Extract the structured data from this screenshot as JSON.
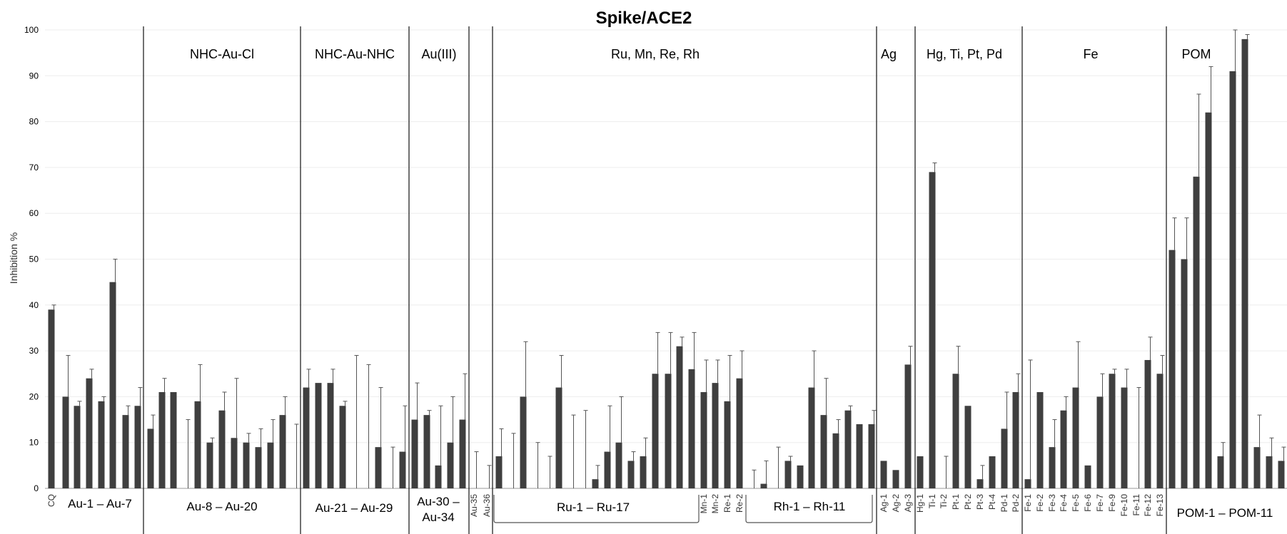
{
  "chart_data": {
    "type": "bar",
    "title": "Spike/ACE2",
    "ylabel": "Inhibition   %",
    "ylim": [
      0,
      100
    ],
    "yticks": [
      0,
      10,
      20,
      30,
      40,
      50,
      60,
      70,
      80,
      90,
      100
    ],
    "grid": true,
    "values": [
      39,
      20,
      18,
      24,
      19,
      45,
      16,
      18,
      13,
      21,
      21,
      0,
      19,
      10,
      17,
      11,
      10,
      9,
      10,
      16,
      0,
      22,
      23,
      23,
      18,
      0,
      0,
      9,
      0,
      8,
      15,
      16,
      5,
      10,
      15,
      0,
      0,
      7,
      0,
      20,
      0,
      0,
      22,
      0,
      0,
      2,
      8,
      10,
      6,
      7,
      25,
      25,
      31,
      26,
      21,
      23,
      19,
      24,
      0,
      1,
      0,
      6,
      5,
      22,
      16,
      12,
      17,
      14,
      14,
      6,
      4,
      27,
      7,
      69,
      0,
      25,
      18,
      2,
      7,
      13,
      21,
      2,
      21,
      9,
      17,
      22,
      5,
      20,
      25,
      22,
      0,
      28,
      25,
      52,
      50,
      68,
      82,
      7,
      91,
      98,
      9,
      7,
      6
    ],
    "errors": [
      1,
      9,
      1,
      2,
      1,
      5,
      2,
      4,
      3,
      3,
      0,
      15,
      8,
      1,
      4,
      13,
      2,
      4,
      5,
      4,
      14,
      4,
      0,
      3,
      1,
      29,
      27,
      13,
      9,
      10,
      8,
      1,
      13,
      10,
      10,
      8,
      5,
      6,
      12,
      12,
      10,
      7,
      7,
      16,
      17,
      3,
      10,
      10,
      2,
      4,
      9,
      9,
      2,
      8,
      7,
      5,
      10,
      6,
      4,
      5,
      9,
      1,
      0,
      8,
      8,
      3,
      1,
      0,
      3,
      0,
      0,
      4,
      0,
      2,
      7,
      6,
      0,
      3,
      0,
      8,
      4,
      26,
      0,
      6,
      3,
      10,
      0,
      5,
      1,
      4,
      22,
      5,
      4,
      7,
      9,
      18,
      10,
      3,
      9,
      1,
      7,
      4,
      3
    ],
    "categories": {
      "cq": "CQ",
      "au35": "Au-35",
      "au36": "Au-36",
      "mn": [
        "Mn-1",
        "Mn-2"
      ],
      "re": [
        "Re-1",
        "Re-2"
      ],
      "ag": [
        "Ag-1",
        "Ag-2",
        "Ag-3"
      ],
      "hg": [
        "Hg-1",
        "Ti-1",
        "Ti-2",
        "Pt-1",
        "Pt-2",
        "Pt-3",
        "Pt-4",
        "Pd-1",
        "Pd-2"
      ],
      "fe": [
        "Fe-1",
        "Fe-2",
        "Fe-3",
        "Fe-4",
        "Fe-5",
        "Fe-6",
        "Fe-7",
        "Fe-9",
        "Fe-10",
        "Fe-11",
        "Fe-12",
        "Fe-13"
      ]
    },
    "group_labels": [
      "NHC-Au-Cl",
      "NHC-Au-NHC",
      "Au(III)",
      "Ru, Mn, Re, Rh",
      "Ag",
      "Hg, Ti, Pt, Pd",
      "Fe",
      "POM"
    ],
    "range_labels": [
      "Au-1 – Au-7",
      "Au-8 – Au-20",
      "Au-21 – Au-29",
      "Au-30 –",
      "Au-34",
      "Ru-1 – Ru-17",
      "Rh-1 – Rh-11",
      "POM-1 – POM-11"
    ]
  }
}
